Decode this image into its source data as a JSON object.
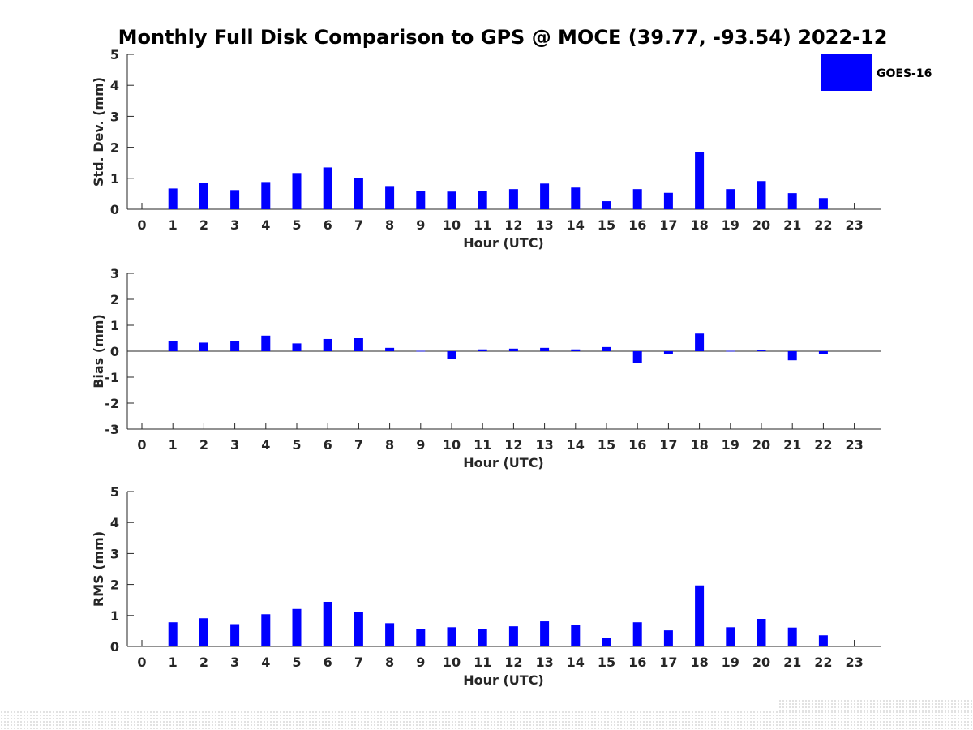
{
  "figure_title": "Monthly Full Disk Comparison to GPS @ MOCE (39.77, -93.54) 2022-12",
  "legend": {
    "label": "GOES-16",
    "color": "#0000ff"
  },
  "bar_color": "#0000ff",
  "chart_data": [
    {
      "type": "bar",
      "name": "std-dev",
      "title": "Monthly Full Disk Comparison to GPS @ MOCE (39.77, -93.54) 2022-12",
      "xlabel": "Hour (UTC)",
      "ylabel": "Std. Dev. (mm)",
      "ylim": [
        0,
        5
      ],
      "yticks": [
        "0",
        "1",
        "2",
        "3",
        "4",
        "5"
      ],
      "ytick_values": [
        0,
        1,
        2,
        3,
        4,
        5
      ],
      "categories": [
        "0",
        "1",
        "2",
        "3",
        "4",
        "5",
        "6",
        "7",
        "8",
        "9",
        "10",
        "11",
        "12",
        "13",
        "14",
        "15",
        "16",
        "17",
        "18",
        "19",
        "20",
        "21",
        "22",
        "23"
      ],
      "series": [
        {
          "name": "GOES-16",
          "values": [
            null,
            0.67,
            0.86,
            0.62,
            0.88,
            1.17,
            1.35,
            1.01,
            0.75,
            0.6,
            0.57,
            0.6,
            0.65,
            0.83,
            0.7,
            0.26,
            0.65,
            0.53,
            1.85,
            0.65,
            0.91,
            0.52,
            0.36,
            null
          ]
        }
      ]
    },
    {
      "type": "bar",
      "name": "bias",
      "title": "",
      "xlabel": "Hour (UTC)",
      "ylabel": "Bias (mm)",
      "ylim": [
        -3,
        3
      ],
      "yticks": [
        "-3",
        "-2",
        "-1",
        "0",
        "1",
        "2",
        "3"
      ],
      "ytick_values": [
        -3,
        -2,
        -1,
        0,
        1,
        2,
        3
      ],
      "categories": [
        "0",
        "1",
        "2",
        "3",
        "4",
        "5",
        "6",
        "7",
        "8",
        "9",
        "10",
        "11",
        "12",
        "13",
        "14",
        "15",
        "16",
        "17",
        "18",
        "19",
        "20",
        "21",
        "22",
        "23"
      ],
      "series": [
        {
          "name": "GOES-16",
          "values": [
            null,
            0.4,
            0.33,
            0.4,
            0.6,
            0.3,
            0.47,
            0.5,
            0.13,
            0.0,
            -0.3,
            0.07,
            0.1,
            0.13,
            0.07,
            0.16,
            -0.45,
            -0.1,
            0.68,
            0.0,
            0.03,
            -0.35,
            -0.1,
            null
          ]
        }
      ]
    },
    {
      "type": "bar",
      "name": "rms",
      "title": "",
      "xlabel": "Hour (UTC)",
      "ylabel": "RMS (mm)",
      "ylim": [
        0,
        5
      ],
      "yticks": [
        "0",
        "1",
        "2",
        "3",
        "4",
        "5"
      ],
      "ytick_values": [
        0,
        1,
        2,
        3,
        4,
        5
      ],
      "categories": [
        "0",
        "1",
        "2",
        "3",
        "4",
        "5",
        "6",
        "7",
        "8",
        "9",
        "10",
        "11",
        "12",
        "13",
        "14",
        "15",
        "16",
        "17",
        "18",
        "19",
        "20",
        "21",
        "22",
        "23"
      ],
      "series": [
        {
          "name": "GOES-16",
          "values": [
            null,
            0.78,
            0.91,
            0.72,
            1.04,
            1.21,
            1.44,
            1.12,
            0.75,
            0.57,
            0.62,
            0.56,
            0.65,
            0.81,
            0.7,
            0.28,
            0.78,
            0.52,
            1.97,
            0.62,
            0.89,
            0.61,
            0.36,
            null
          ]
        }
      ]
    }
  ]
}
